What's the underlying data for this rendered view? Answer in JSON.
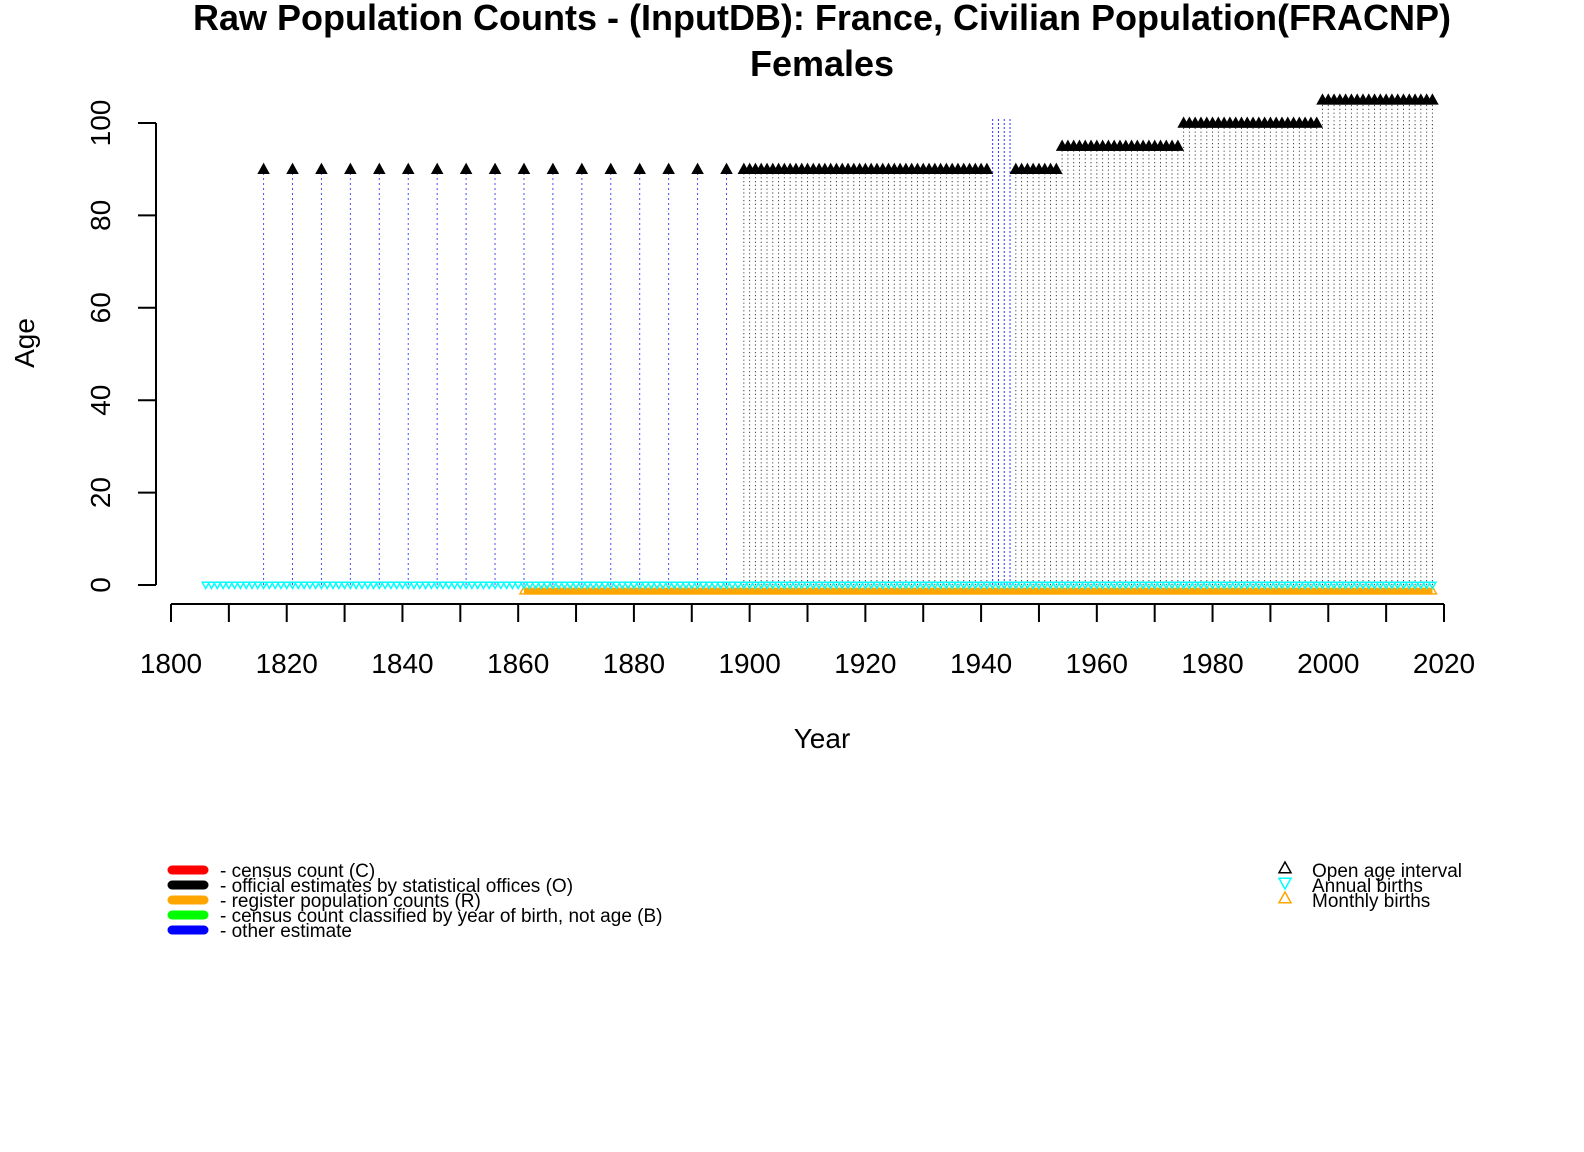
{
  "chart_data": {
    "type": "scatter",
    "title": "Raw Population Counts - (InputDB): France, Civilian Population(FRACNP)",
    "subtitle": "Females",
    "xlabel": "Year",
    "ylabel": "Age",
    "xlim": [
      1800,
      2020
    ],
    "ylim": [
      0,
      100
    ],
    "x_ticks": [
      1800,
      1820,
      1840,
      1860,
      1880,
      1900,
      1920,
      1940,
      1960,
      1980,
      2000,
      2020
    ],
    "y_ticks": [
      0,
      20,
      40,
      60,
      80,
      100
    ],
    "legend_left": [
      {
        "label": "- census count (C)",
        "color": "#ff0000"
      },
      {
        "label": "- official estimates by statistical offices (O)",
        "color": "#000000"
      },
      {
        "label": "- register population counts (R)",
        "color": "#ffa500"
      },
      {
        "label": "- census count classified by year of birth, not age (B)",
        "color": "#00ff00"
      },
      {
        "label": "- other estimate",
        "color": "#0000ff"
      }
    ],
    "legend_right": [
      {
        "label": "Open age interval",
        "color": "#000000",
        "marker": "triangle-up"
      },
      {
        "label": "Annual births",
        "color": "#00ffff",
        "marker": "triangle-down"
      },
      {
        "label": "Monthly births",
        "color": "#ffa500",
        "marker": "triangle-up"
      }
    ],
    "series": [
      {
        "name": "- other estimate",
        "color": "#0000ff",
        "years": [
          1816,
          1821,
          1826,
          1831,
          1836,
          1841,
          1846,
          1851,
          1856,
          1861,
          1866,
          1871,
          1876,
          1881,
          1886,
          1891,
          1896
        ],
        "open_age": 90
      },
      {
        "name": "- other estimate",
        "color": "#0000ff",
        "years": [
          1942,
          1943,
          1944,
          1945
        ],
        "open_age": 100
      },
      {
        "name": "- official estimates by statistical offices (O)",
        "color": "#000000",
        "segments": [
          {
            "from": 1899,
            "to": 1941,
            "open_age": 90
          },
          {
            "from": 1946,
            "to": 1953,
            "open_age": 90
          },
          {
            "from": 1954,
            "to": 1974,
            "open_age": 95
          },
          {
            "from": 1975,
            "to": 1998,
            "open_age": 100
          },
          {
            "from": 1999,
            "to": 2018,
            "open_age": 105
          }
        ]
      },
      {
        "name": "Annual births",
        "color": "#00ffff",
        "from": 1806,
        "to": 2018,
        "age": 0
      },
      {
        "name": "Monthly births",
        "color": "#ffa500",
        "from": 1861,
        "to": 2018,
        "age": -1
      }
    ]
  }
}
